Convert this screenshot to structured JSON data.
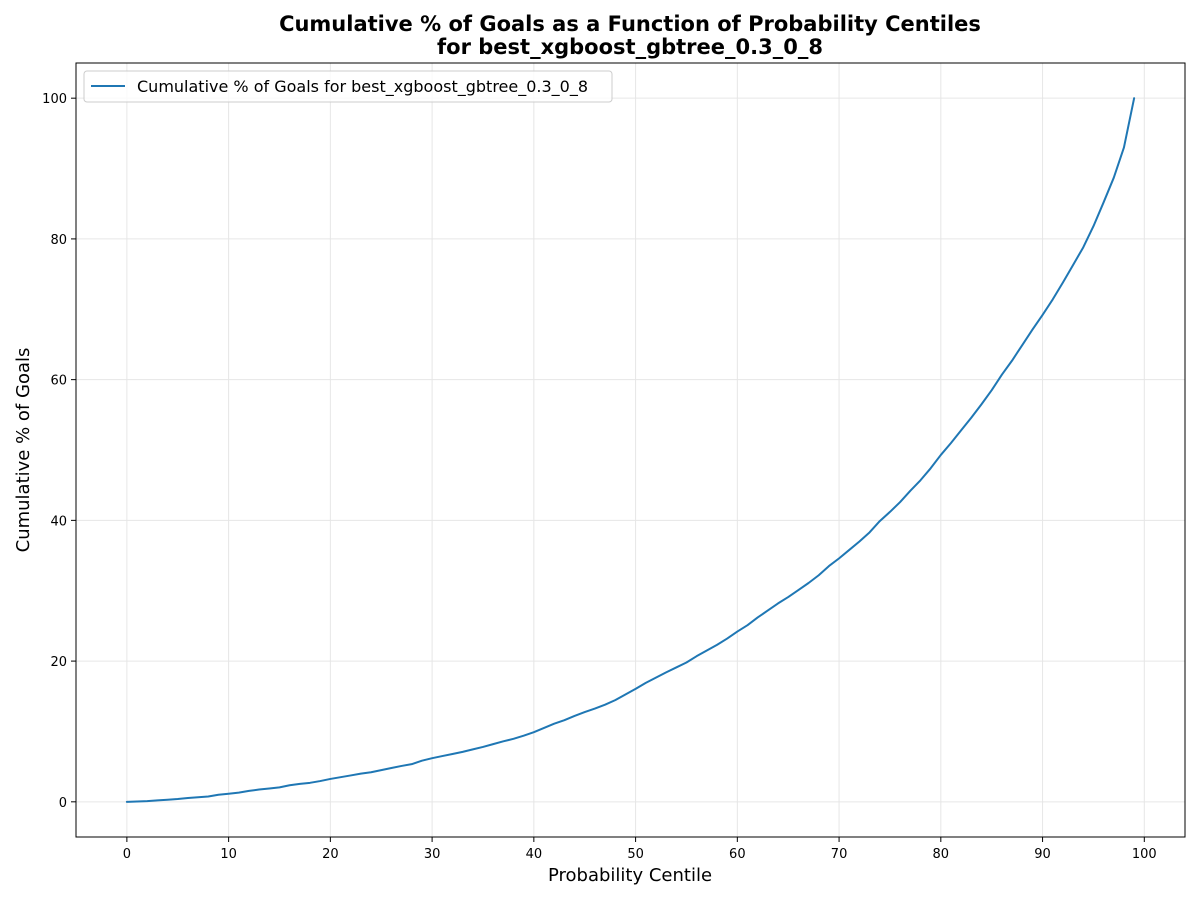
{
  "chart_data": {
    "type": "line",
    "title": "Cumulative % of Goals as a Function of Probability Centiles",
    "subtitle": "for best_xgboost_gbtree_0.3_0_8",
    "xlabel": "Probability Centile",
    "ylabel": "Cumulative % of Goals",
    "xlim": [
      -5,
      104
    ],
    "ylim": [
      -5,
      105
    ],
    "xticks": [
      0,
      10,
      20,
      30,
      40,
      50,
      60,
      70,
      80,
      90,
      100
    ],
    "yticks": [
      0,
      20,
      40,
      60,
      80,
      100
    ],
    "grid": true,
    "legend_position": "top-left",
    "series": [
      {
        "name": "Cumulative % of Goals for best_xgboost_gbtree_0.3_0_8",
        "color": "#1f77b4",
        "x": [
          0,
          1,
          2,
          3,
          4,
          5,
          6,
          7,
          8,
          9,
          10,
          11,
          12,
          13,
          14,
          15,
          16,
          17,
          18,
          19,
          20,
          21,
          22,
          23,
          24,
          25,
          26,
          27,
          28,
          29,
          30,
          31,
          32,
          33,
          34,
          35,
          36,
          37,
          38,
          39,
          40,
          41,
          42,
          43,
          44,
          45,
          46,
          47,
          48,
          49,
          50,
          51,
          52,
          53,
          54,
          55,
          56,
          57,
          58,
          59,
          60,
          61,
          62,
          63,
          64,
          65,
          66,
          67,
          68,
          69,
          70,
          71,
          72,
          73,
          74,
          75,
          76,
          77,
          78,
          79,
          80,
          81,
          82,
          83,
          84,
          85,
          86,
          87,
          88,
          89,
          90,
          91,
          92,
          93,
          94,
          95,
          96,
          97,
          98,
          99
        ],
        "values": [
          0.0,
          0.05,
          0.1,
          0.2,
          0.3,
          0.4,
          0.55,
          0.65,
          0.75,
          1.0,
          1.15,
          1.3,
          1.55,
          1.75,
          1.9,
          2.05,
          2.35,
          2.55,
          2.7,
          2.95,
          3.25,
          3.5,
          3.75,
          4.0,
          4.2,
          4.5,
          4.8,
          5.1,
          5.35,
          5.85,
          6.2,
          6.5,
          6.8,
          7.1,
          7.45,
          7.8,
          8.2,
          8.6,
          8.95,
          9.4,
          9.9,
          10.5,
          11.1,
          11.6,
          12.2,
          12.75,
          13.25,
          13.8,
          14.45,
          15.25,
          16.05,
          16.9,
          17.65,
          18.4,
          19.1,
          19.8,
          20.7,
          21.5,
          22.3,
          23.2,
          24.2,
          25.1,
          26.2,
          27.2,
          28.2,
          29.1,
          30.1,
          31.1,
          32.2,
          33.5,
          34.6,
          35.8,
          37.0,
          38.3,
          39.9,
          41.2,
          42.6,
          44.2,
          45.7,
          47.4,
          49.3,
          51.0,
          52.8,
          54.6,
          56.5,
          58.5,
          60.7,
          62.7,
          64.9,
          67.1,
          69.2,
          71.4,
          73.8,
          76.3,
          78.8,
          81.8,
          85.2,
          88.7,
          93.0,
          100.0
        ]
      }
    ]
  }
}
